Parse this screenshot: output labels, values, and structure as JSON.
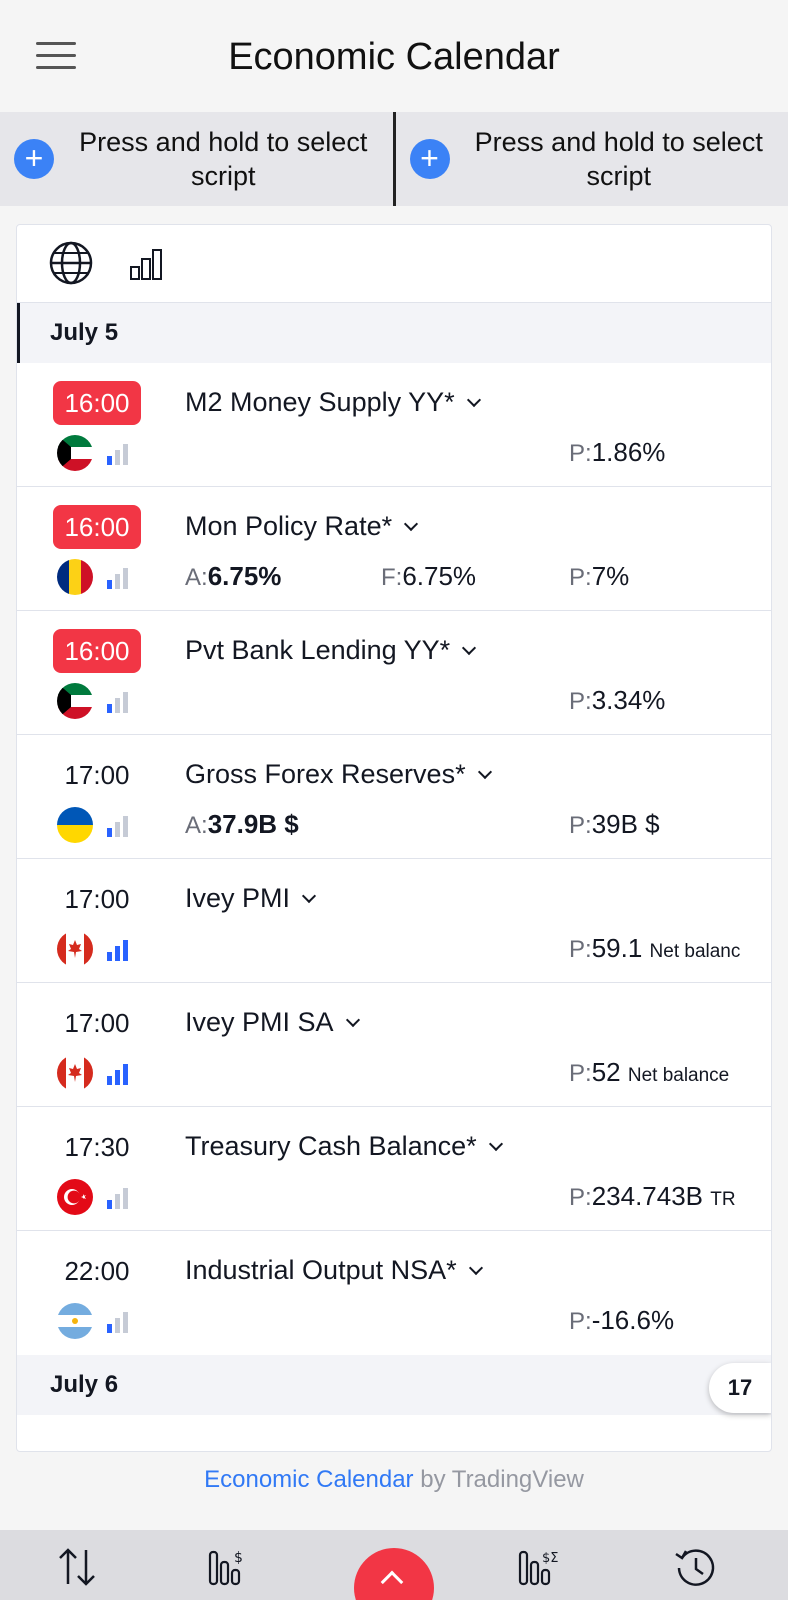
{
  "header": {
    "title": "Economic Calendar"
  },
  "script_slots": [
    {
      "label": "Press and hold to select script"
    },
    {
      "label": "Press and hold to select script"
    }
  ],
  "colors": {
    "live": "#f23645",
    "accent": "#2962ff",
    "link": "#3179f5"
  },
  "sections": [
    {
      "date": "July 5",
      "events": [
        {
          "time": "16:00",
          "live": true,
          "name": "M2 Money Supply YY*",
          "flag": "kuwait-flag-icon",
          "impact": 1,
          "previous": "1.86%"
        },
        {
          "time": "16:00",
          "live": true,
          "name": "Mon Policy Rate*",
          "flag": "romania-flag-icon",
          "impact": 1,
          "actual": "6.75%",
          "forecast": "6.75%",
          "previous": "7%"
        },
        {
          "time": "16:00",
          "live": true,
          "name": "Pvt Bank Lending YY*",
          "flag": "kuwait-flag-icon",
          "impact": 1,
          "previous": "3.34%"
        },
        {
          "time": "17:00",
          "live": false,
          "name": "Gross Forex Reserves*",
          "flag": "ukraine-flag-icon",
          "impact": 1,
          "actual": "37.9B $",
          "previous": "39B $"
        },
        {
          "time": "17:00",
          "live": false,
          "name": "Ivey PMI",
          "flag": "canada-flag-icon",
          "impact": 3,
          "previous": "59.1",
          "previous_unit": "Net balanc"
        },
        {
          "time": "17:00",
          "live": false,
          "name": "Ivey PMI SA",
          "flag": "canada-flag-icon",
          "impact": 3,
          "previous": "52",
          "previous_unit": "Net balance"
        },
        {
          "time": "17:30",
          "live": false,
          "name": "Treasury Cash Balance*",
          "flag": "turkey-flag-icon",
          "impact": 1,
          "previous": "234.743B",
          "previous_unit": "TR"
        },
        {
          "time": "22:00",
          "live": false,
          "name": "Industrial Output NSA*",
          "flag": "argentina-flag-icon",
          "impact": 1,
          "previous": "-16.6%"
        }
      ]
    },
    {
      "date": "July 6",
      "events": []
    }
  ],
  "labels": {
    "actual": "A:",
    "forecast": "F:",
    "previous": "P:"
  },
  "tv_badge": "17",
  "attribution": {
    "link": "Economic Calendar",
    "suffix": " by TradingView"
  }
}
